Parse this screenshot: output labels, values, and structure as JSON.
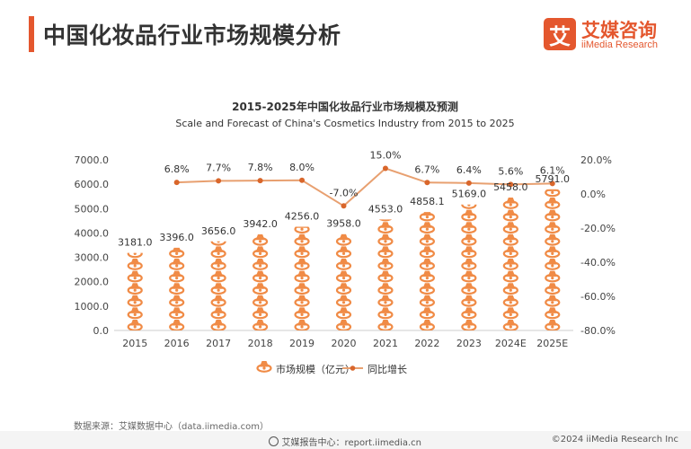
{
  "header": {
    "title": "中国化妆品行业市场规模分析",
    "brand_mark": "艾",
    "brand_name": "艾媒咨询",
    "brand_sub": "iiMedia Research"
  },
  "chart_data": {
    "type": "bar",
    "title": "2015-2025年中国化妆品行业市场规模及预测",
    "subtitle": "Scale and Forecast of China's Cosmetics Industry from 2015 to 2025",
    "categories": [
      "2015",
      "2016",
      "2017",
      "2018",
      "2019",
      "2020",
      "2021",
      "2022",
      "2023",
      "2024E",
      "2025E"
    ],
    "series": [
      {
        "name": "市场规模（亿元）",
        "type": "bar",
        "axis": "left",
        "values": [
          3181.0,
          3396.0,
          3656.0,
          3942.0,
          4256.0,
          3958.0,
          4553.0,
          4858.1,
          5169.0,
          5458.0,
          5791.0
        ],
        "labels": [
          "3181.0",
          "3396.0",
          "3656.0",
          "3942.0",
          "4256.0",
          "3958.0",
          "4553.0",
          "4858.1",
          "5169.0",
          "5458.0",
          "5791.0"
        ]
      },
      {
        "name": "同比增长",
        "type": "line",
        "axis": "right",
        "values": [
          null,
          6.8,
          7.7,
          7.8,
          8.0,
          -7.0,
          15.0,
          6.7,
          6.4,
          5.6,
          6.1
        ],
        "labels": [
          "",
          "6.8%",
          "7.7%",
          "7.8%",
          "8.0%",
          "-7.0%",
          "15.0%",
          "6.7%",
          "6.4%",
          "5.6%",
          "6.1%"
        ]
      }
    ],
    "y_left": {
      "min": 0,
      "max": 7000,
      "ticks": [
        "0.0",
        "1000.0",
        "2000.0",
        "3000.0",
        "4000.0",
        "5000.0",
        "6000.0",
        "7000.0"
      ]
    },
    "y_right": {
      "min": -80,
      "max": 20,
      "ticks": [
        "-80.0%",
        "-60.0%",
        "-40.0%",
        "-20.0%",
        "0.0%",
        "20.0%"
      ]
    },
    "legend_position": "bottom",
    "grid": false,
    "colors": {
      "bar": "#f08b46",
      "line": "#e8a070",
      "marker": "#d9662b",
      "axis": "#cccccc"
    }
  },
  "footer": {
    "source": "数据来源：艾媒数据中心（data.iimedia.com）",
    "report_center": "艾媒报告中心：report.iimedia.cn",
    "copyright": "©2024  iiMedia Research  Inc"
  }
}
